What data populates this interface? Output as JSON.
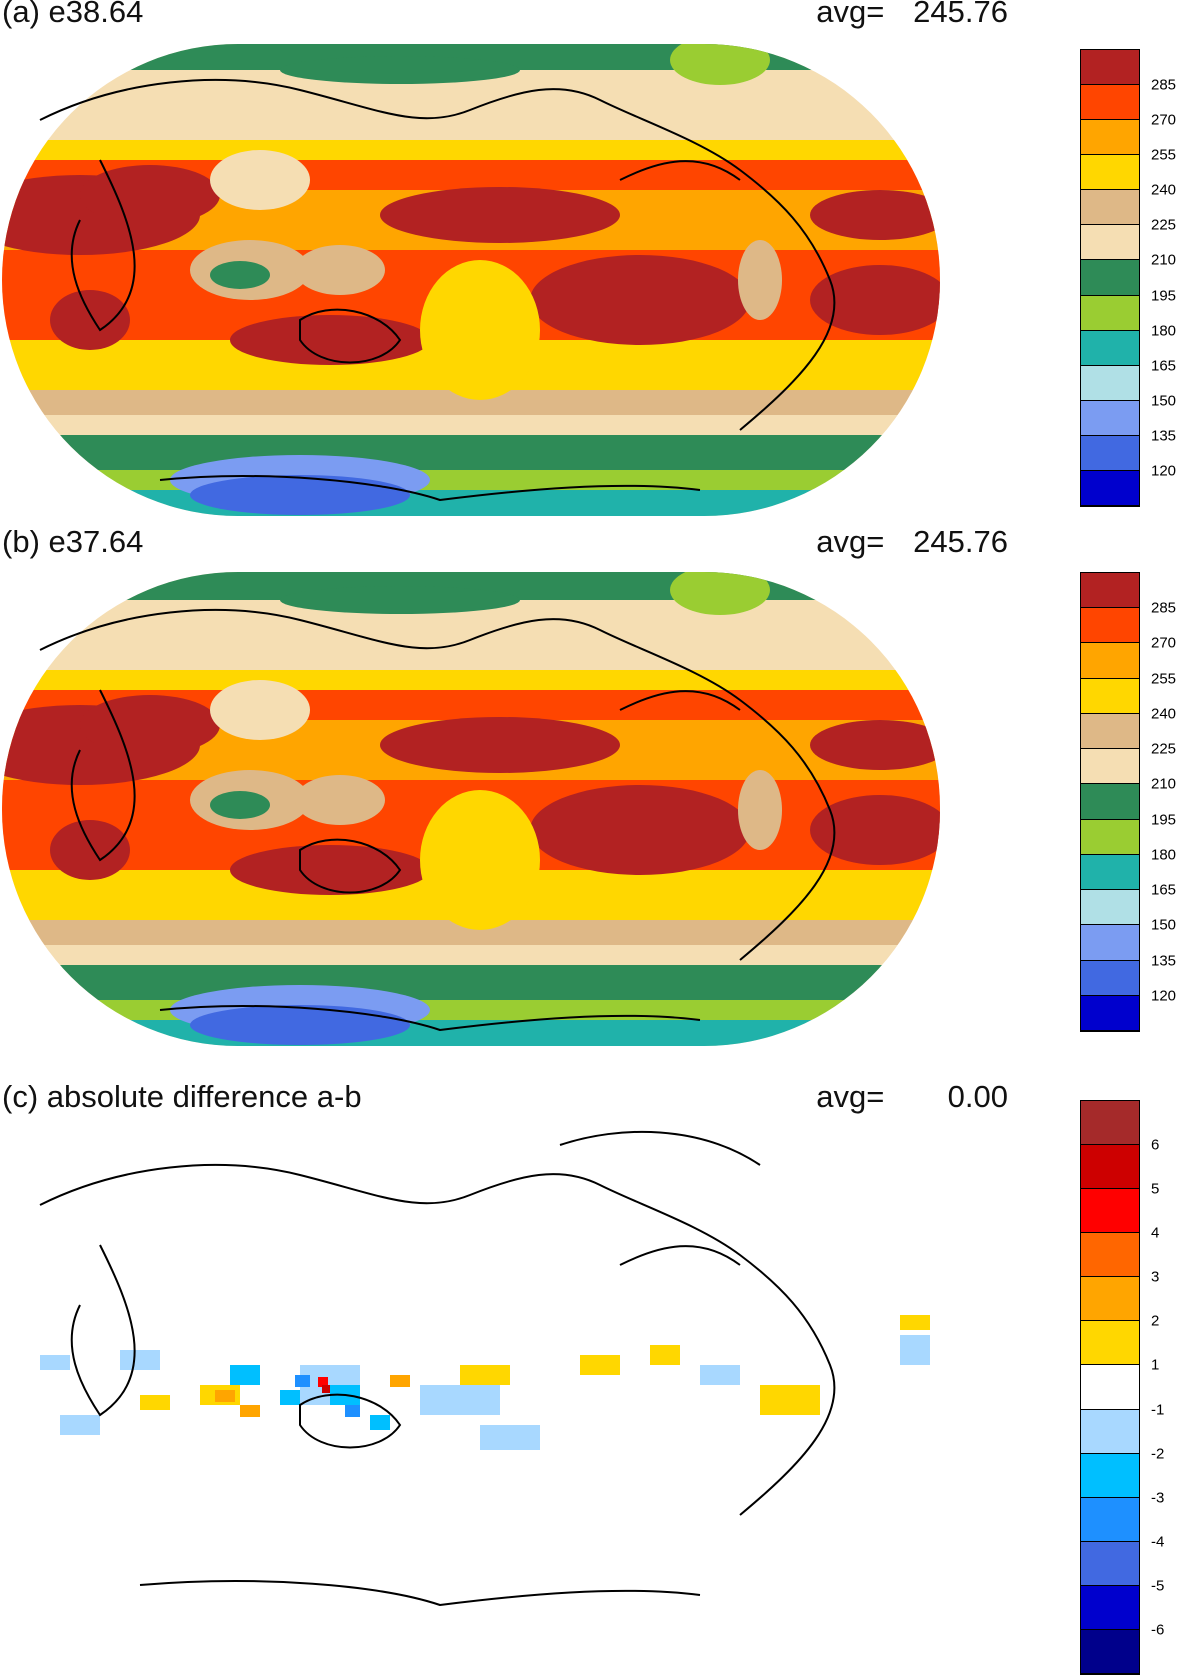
{
  "panels": [
    {
      "title": "(a) e38.64",
      "avg_label": "avg=",
      "avg_value": "245.76",
      "colorbar": {
        "colors": [
          "#b22222",
          "#ff4500",
          "#ffa500",
          "#ffd700",
          "#deb887",
          "#f5deb3",
          "#2e8b57",
          "#9acd32",
          "#20b2aa",
          "#b0e0e6",
          "#7b9cf2",
          "#4169e1",
          "#0000cd"
        ],
        "labels": [
          "285",
          "270",
          "255",
          "240",
          "225",
          "210",
          "195",
          "180",
          "165",
          "150",
          "135",
          "120"
        ]
      }
    },
    {
      "title": "(b) e37.64",
      "avg_label": "avg=",
      "avg_value": "245.76",
      "colorbar": {
        "colors": [
          "#b22222",
          "#ff4500",
          "#ffa500",
          "#ffd700",
          "#deb887",
          "#f5deb3",
          "#2e8b57",
          "#9acd32",
          "#20b2aa",
          "#b0e0e6",
          "#7b9cf2",
          "#4169e1",
          "#0000cd"
        ],
        "labels": [
          "285",
          "270",
          "255",
          "240",
          "225",
          "210",
          "195",
          "180",
          "165",
          "150",
          "135",
          "120"
        ]
      }
    },
    {
      "title": "(c) absolute difference a-b",
      "avg_label": "avg=",
      "avg_value": "0.00",
      "colorbar": {
        "colors": [
          "#a52a2a",
          "#cd0000",
          "#ff0000",
          "#ff6600",
          "#ffa500",
          "#ffd700",
          "#ffffff",
          "#a8d8ff",
          "#00bfff",
          "#1e90ff",
          "#4169e1",
          "#0000cd",
          "#00008b"
        ],
        "labels": [
          "6",
          "5",
          "4",
          "3",
          "2",
          "1",
          "-1",
          "-2",
          "-3",
          "-4",
          "-5",
          "-6"
        ]
      }
    }
  ]
}
